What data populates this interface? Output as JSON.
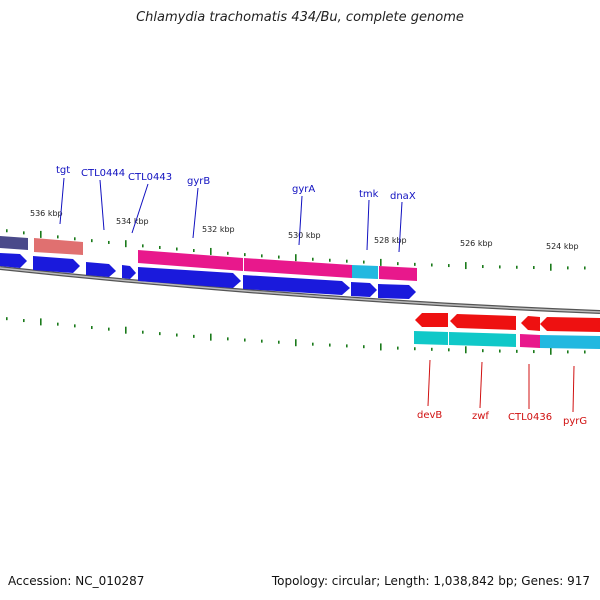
{
  "title": "Chlamydia trachomatis 434/Bu, complete genome",
  "footer": {
    "accession": "Accession: NC_010287",
    "summary": "Topology: circular; Length: 1,038,842 bp; Genes: 917"
  },
  "colors": {
    "fwd_gene": "#1a1adc",
    "rev_gene": "#ee1111",
    "magenta": "#e8188c",
    "cyan": "#22b8e0",
    "teal": "#10c8c8",
    "salmon": "#e07070",
    "purple": "#4a4a8a",
    "backbone": "#888888",
    "tick": "#1a7a1a",
    "fwd_label": "#1010c0",
    "rev_label": "#d01010"
  },
  "ticks": [
    {
      "label": "536 kbp"
    },
    {
      "label": "534 kbp"
    },
    {
      "label": "532 kbp"
    },
    {
      "label": "530 kbp"
    },
    {
      "label": "528 kbp"
    },
    {
      "label": "526 kbp"
    },
    {
      "label": "524 kbp"
    }
  ],
  "forward_labels": [
    {
      "text": "tgt"
    },
    {
      "text": "CTL0444"
    },
    {
      "text": "CTL0443"
    },
    {
      "text": "gyrB"
    },
    {
      "text": "gyrA"
    },
    {
      "text": "tmk"
    },
    {
      "text": "dnaX"
    }
  ],
  "reverse_labels": [
    {
      "text": "devB"
    },
    {
      "text": "zwf"
    },
    {
      "text": "CTL0436"
    },
    {
      "text": "pyrG"
    }
  ]
}
